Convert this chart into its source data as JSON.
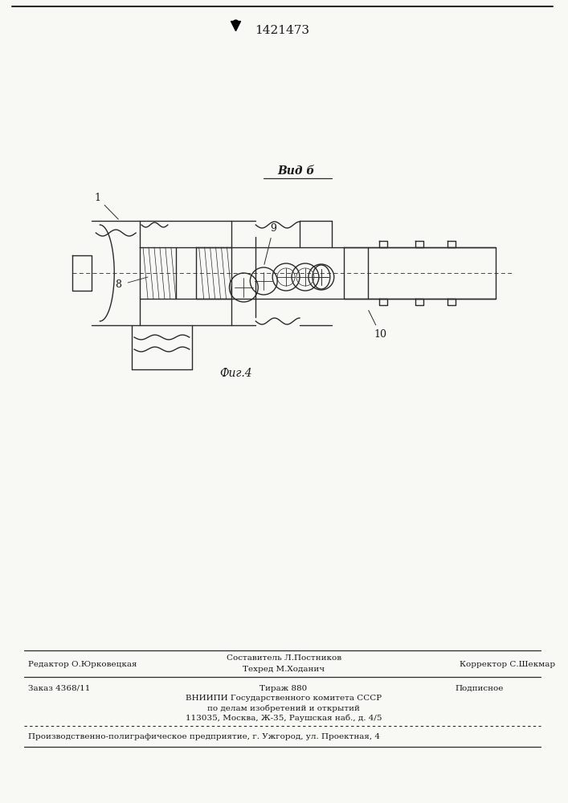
{
  "patent_number": "1421473",
  "fig_label": "Фиг.4",
  "view_label": "Вид б",
  "bg_color": "#f8f8f5",
  "line_color": "#2a2a2a",
  "text_color": "#1a1a1a",
  "footer": {
    "editor": "Редактор О.Юрковецкая",
    "composer": "Составитель Л.Постников",
    "techred": "Техред М.Ходанич",
    "corrector": "Корректор С.Шекмар",
    "order": "Заказ 4368/11",
    "tirazh": "Тираж 880",
    "podpisnoe": "Подписное",
    "vniip1": "ВНИИПИ Государственного комитета СССР",
    "vniip2": "по делам изобретений и открытий",
    "vniip3": "113035, Москва, Ж-35, Раушская наб., д. 4/5",
    "lastline": "Производственно-полиграфическое предприятие, г. Ужгород, ул. Проектная, 4"
  }
}
